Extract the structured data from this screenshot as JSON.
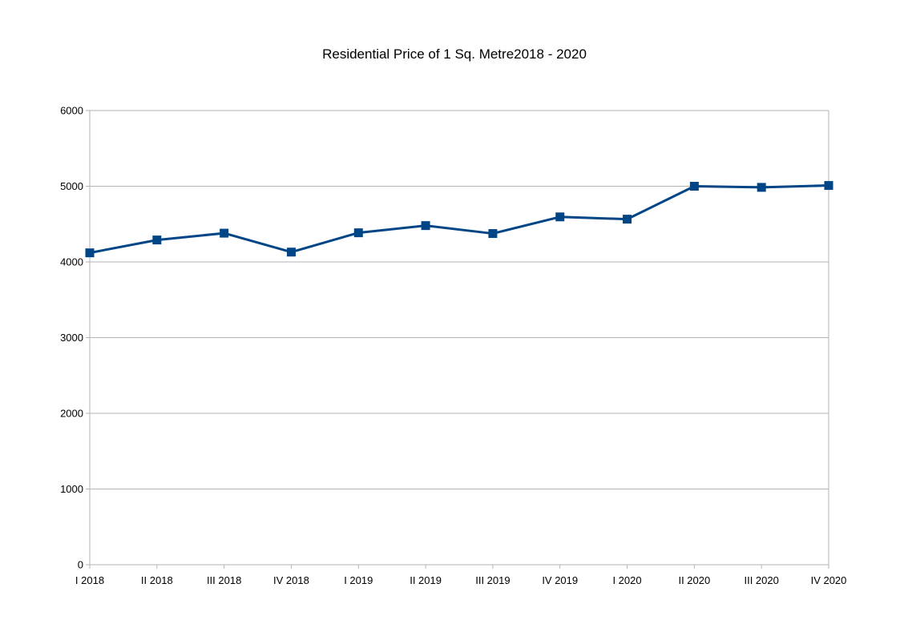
{
  "chart_data": {
    "type": "line",
    "title": "Residential Price of 1 Sq. Metre2018 - 2020",
    "xlabel": "",
    "ylabel": "",
    "categories": [
      "I 2018",
      "II 2018",
      "III 2018",
      "IV 2018",
      "I 2019",
      "II 2019",
      "III 2019",
      "IV 2019",
      "I 2020",
      "II 2020",
      "III 2020",
      "IV 2020"
    ],
    "series": [
      {
        "values": [
          4120,
          4290,
          4380,
          4130,
          4385,
          4480,
          4375,
          4595,
          4565,
          5000,
          4985,
          5010
        ],
        "color": "#004586",
        "marker": "square"
      }
    ],
    "ylim": [
      0,
      6000
    ],
    "yticks": [
      "0",
      "1000",
      "2000",
      "3000",
      "4000",
      "5000",
      "6000"
    ],
    "grid": "horizontal",
    "legend": "none"
  }
}
